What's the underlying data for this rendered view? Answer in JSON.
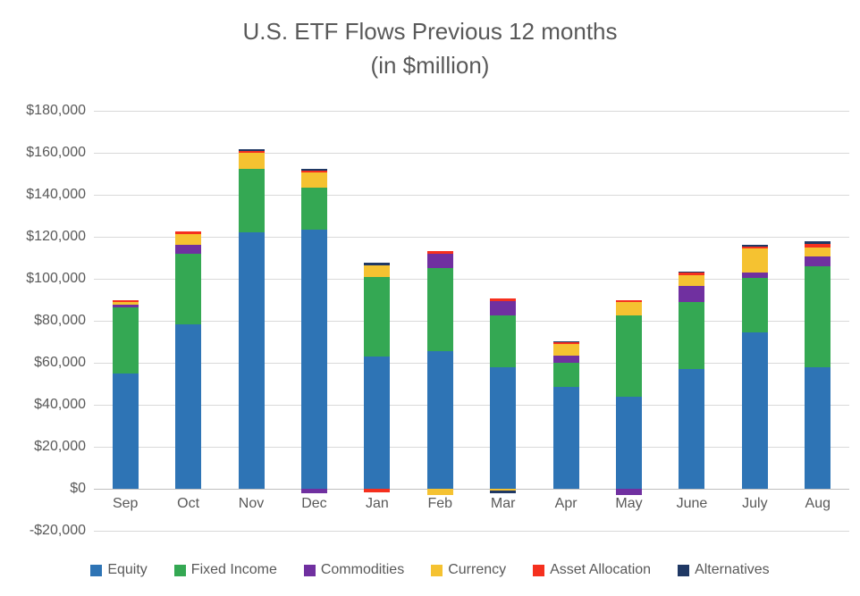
{
  "chart_data": {
    "type": "bar",
    "stacked": true,
    "title": "U.S. ETF Flows Previous 12 months",
    "subtitle": "(in $million)",
    "xlabel": "",
    "ylabel": "",
    "grid": true,
    "legend_position": "bottom",
    "ylim": [
      -20000,
      180000
    ],
    "yticks": [
      {
        "value": 180000,
        "label": "$180,000"
      },
      {
        "value": 160000,
        "label": "$160,000"
      },
      {
        "value": 140000,
        "label": "$140,000"
      },
      {
        "value": 120000,
        "label": "$120,000"
      },
      {
        "value": 100000,
        "label": "$100,000"
      },
      {
        "value": 80000,
        "label": "$80,000"
      },
      {
        "value": 60000,
        "label": "$60,000"
      },
      {
        "value": 40000,
        "label": "$40,000"
      },
      {
        "value": 20000,
        "label": "$20,000"
      },
      {
        "value": 0,
        "label": "$0"
      },
      {
        "value": -20000,
        "label": "-$20,000"
      }
    ],
    "categories": [
      "Sep",
      "Oct",
      "Nov",
      "Dec",
      "Jan",
      "Feb",
      "Mar",
      "Apr",
      "May",
      "June",
      "July",
      "Aug"
    ],
    "series": [
      {
        "name": "Equity",
        "color": "#2E74B5",
        "values": [
          55000,
          78500,
          122000,
          123500,
          63000,
          65500,
          58000,
          48500,
          44000,
          57000,
          74500,
          58000
        ]
      },
      {
        "name": "Fixed Income",
        "color": "#34A853",
        "values": [
          31500,
          33500,
          30500,
          20000,
          38000,
          39500,
          24500,
          11500,
          38500,
          32000,
          26000,
          48000
        ]
      },
      {
        "name": "Commodities",
        "color": "#7030A0",
        "values": [
          1300,
          4000,
          0,
          -2000,
          0,
          7000,
          7000,
          3300,
          -3000,
          7500,
          2500,
          4500
        ]
      },
      {
        "name": "Currency",
        "color": "#F5C231",
        "values": [
          1300,
          5300,
          7500,
          7000,
          5500,
          -3000,
          -1000,
          5500,
          6500,
          5000,
          11500,
          4500
        ]
      },
      {
        "name": "Asset Allocation",
        "color": "#F5301E",
        "values": [
          900,
          1100,
          900,
          1000,
          -1500,
          1100,
          1300,
          900,
          1000,
          1400,
          900,
          1400
        ]
      },
      {
        "name": "Alternatives",
        "color": "#1F3864",
        "values": [
          0,
          0,
          700,
          900,
          1000,
          0,
          -1000,
          700,
          0,
          700,
          700,
          1400
        ]
      }
    ],
    "colors": {
      "gridline": "#D9D9D9",
      "axis_line": "#BFBFBF",
      "text": "#595959"
    }
  }
}
